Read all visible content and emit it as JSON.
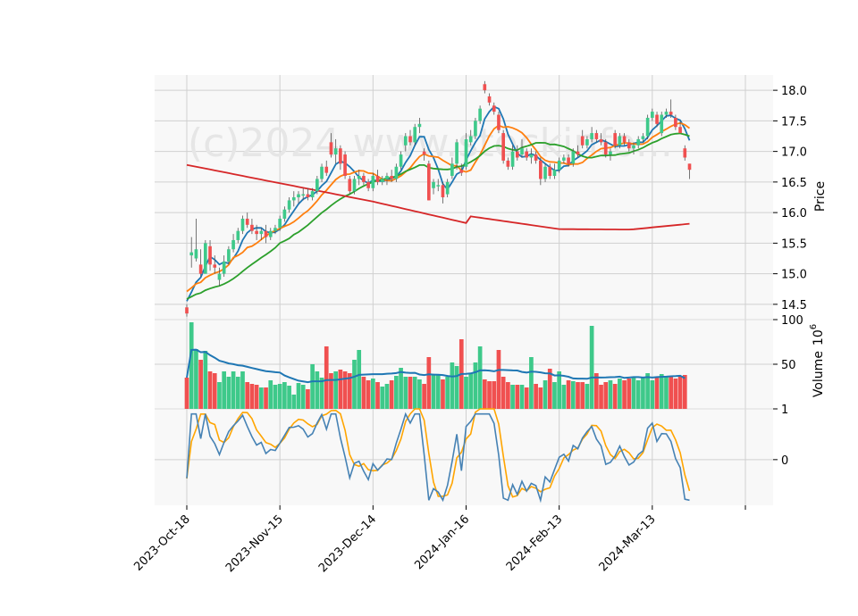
{
  "chart_data": [
    {
      "type": "candlestick",
      "panel": "price",
      "ylabel": "Price",
      "ylim": [
        14.25,
        18.25
      ],
      "yticks": [
        14.5,
        15.0,
        15.5,
        16.0,
        16.5,
        17.0,
        17.5,
        18.0
      ],
      "ytick_labels": [
        "14.5",
        "15.0",
        "15.5",
        "16.0",
        "16.5",
        "17.0",
        "17.5",
        "18.0"
      ],
      "watermark": "(c)2024 www.stockinfo...",
      "grid": true,
      "series": [
        {
          "name": "",
          "style": "candles",
          "values": []
        },
        {
          "name": "",
          "style": "ma",
          "color": "#1f77b4"
        },
        {
          "name": "",
          "style": "ma",
          "color": "#ff7f0e"
        },
        {
          "name": "",
          "style": "ma",
          "color": "#2ca02c"
        },
        {
          "name": "",
          "style": "ma",
          "color": "#d62728"
        }
      ],
      "colors": {
        "up": "#3ec98a",
        "down": "#f05050"
      }
    },
    {
      "type": "bar",
      "panel": "volume",
      "ylabel": "Volume  10^6",
      "ylabel_main": "Volume",
      "ylabel_exp": "6",
      "ylabel_base": "10",
      "ylim": [
        0,
        100
      ],
      "yticks": [
        50,
        100
      ],
      "ytick_labels": [
        "50",
        "100"
      ]
    },
    {
      "type": "line",
      "panel": "oscillator",
      "ylim": [
        -0.9,
        1.0
      ],
      "yticks": [
        0,
        1
      ],
      "ytick_labels": [
        "0",
        "1"
      ],
      "series": [
        {
          "name": "",
          "color": "#4682b4"
        },
        {
          "name": "",
          "color": "#ffa500"
        }
      ]
    }
  ],
  "x_axis": {
    "start_date": "2023-10-18",
    "num_sessions": 120,
    "tick_labels": [
      "2023-Oct-18",
      "2023-Nov-15",
      "2023-Dec-14",
      "2024-Jan-16",
      "2024-Feb-13",
      "2024-Mar-13"
    ],
    "tick_index": [
      0,
      20,
      40,
      60,
      80,
      100,
      120
    ]
  },
  "ohlc": [
    [
      14.45,
      14.5,
      14.3,
      14.35
    ],
    [
      15.3,
      15.6,
      15.1,
      15.35
    ],
    [
      15.25,
      15.9,
      15.2,
      15.4
    ],
    [
      15.15,
      15.4,
      14.95,
      15.0
    ],
    [
      15.0,
      15.55,
      15.0,
      15.5
    ],
    [
      15.45,
      15.55,
      15.05,
      15.15
    ],
    [
      15.15,
      15.3,
      15.0,
      15.1
    ],
    [
      14.9,
      15.1,
      14.8,
      15.0
    ],
    [
      15.0,
      15.3,
      14.95,
      15.2
    ],
    [
      15.2,
      15.45,
      15.15,
      15.4
    ],
    [
      15.4,
      15.65,
      15.35,
      15.55
    ],
    [
      15.55,
      15.75,
      15.5,
      15.7
    ],
    [
      15.7,
      15.95,
      15.65,
      15.9
    ],
    [
      15.9,
      16.0,
      15.75,
      15.8
    ],
    [
      15.8,
      15.9,
      15.65,
      15.7
    ],
    [
      15.7,
      15.8,
      15.55,
      15.65
    ],
    [
      15.65,
      15.75,
      15.55,
      15.7
    ],
    [
      15.7,
      15.8,
      15.5,
      15.6
    ],
    [
      15.6,
      15.75,
      15.55,
      15.7
    ],
    [
      15.7,
      15.8,
      15.65,
      15.75
    ],
    [
      15.75,
      15.95,
      15.7,
      15.9
    ],
    [
      15.9,
      16.1,
      15.85,
      16.05
    ],
    [
      16.05,
      16.25,
      16.0,
      16.2
    ],
    [
      16.2,
      16.35,
      16.1,
      16.25
    ],
    [
      16.25,
      16.35,
      16.15,
      16.3
    ],
    [
      16.3,
      16.4,
      16.2,
      16.3
    ],
    [
      16.3,
      16.4,
      16.2,
      16.25
    ],
    [
      16.25,
      16.4,
      16.2,
      16.35
    ],
    [
      16.35,
      16.6,
      16.3,
      16.55
    ],
    [
      16.55,
      16.8,
      16.5,
      16.75
    ],
    [
      16.75,
      16.85,
      16.6,
      16.65
    ],
    [
      17.15,
      17.3,
      16.9,
      16.95
    ],
    [
      16.95,
      17.2,
      16.8,
      17.05
    ],
    [
      17.05,
      17.1,
      16.7,
      16.8
    ],
    [
      16.95,
      17.0,
      16.55,
      16.6
    ],
    [
      16.55,
      16.6,
      16.3,
      16.35
    ],
    [
      16.35,
      16.6,
      16.3,
      16.55
    ],
    [
      16.55,
      16.7,
      16.45,
      16.6
    ],
    [
      16.6,
      16.65,
      16.45,
      16.5
    ],
    [
      16.5,
      16.55,
      16.35,
      16.4
    ],
    [
      16.4,
      16.65,
      16.35,
      16.6
    ],
    [
      16.6,
      16.7,
      16.45,
      16.5
    ],
    [
      16.5,
      16.6,
      16.45,
      16.55
    ],
    [
      16.55,
      16.65,
      16.45,
      16.6
    ],
    [
      16.6,
      16.7,
      16.5,
      16.55
    ],
    [
      16.55,
      16.8,
      16.5,
      16.75
    ],
    [
      16.75,
      17.0,
      16.7,
      16.95
    ],
    [
      17.1,
      17.3,
      17.0,
      17.25
    ],
    [
      17.25,
      17.35,
      17.1,
      17.15
    ],
    [
      17.15,
      17.45,
      17.1,
      17.4
    ],
    [
      17.4,
      17.55,
      17.3,
      17.45
    ],
    [
      17.0,
      17.05,
      16.85,
      16.95
    ],
    [
      16.8,
      16.85,
      16.2,
      16.2
    ],
    [
      16.4,
      16.55,
      16.3,
      16.5
    ],
    [
      16.45,
      16.55,
      16.35,
      16.45
    ],
    [
      16.45,
      16.5,
      16.15,
      16.25
    ],
    [
      16.3,
      16.55,
      16.25,
      16.5
    ],
    [
      16.6,
      16.9,
      16.55,
      16.8
    ],
    [
      16.8,
      17.2,
      16.7,
      17.15
    ],
    [
      16.7,
      16.8,
      16.6,
      16.65
    ],
    [
      16.75,
      17.3,
      16.7,
      17.2
    ],
    [
      17.15,
      17.35,
      17.1,
      17.25
    ],
    [
      17.25,
      17.55,
      17.2,
      17.5
    ],
    [
      17.5,
      17.75,
      17.45,
      17.7
    ],
    [
      18.1,
      18.15,
      17.95,
      18.0
    ],
    [
      17.9,
      17.95,
      17.75,
      17.8
    ],
    [
      17.75,
      17.8,
      17.6,
      17.65
    ],
    [
      17.6,
      17.65,
      17.3,
      17.35
    ],
    [
      17.3,
      17.35,
      16.8,
      16.85
    ],
    [
      16.85,
      16.9,
      16.7,
      16.75
    ],
    [
      16.75,
      17.1,
      16.7,
      17.0
    ],
    [
      17.0,
      17.1,
      16.85,
      16.9
    ],
    [
      16.95,
      17.2,
      16.9,
      17.05
    ],
    [
      17.0,
      17.05,
      16.85,
      16.9
    ],
    [
      16.9,
      17.05,
      16.8,
      16.95
    ],
    [
      16.95,
      17.0,
      16.8,
      16.85
    ],
    [
      16.85,
      16.9,
      16.45,
      16.55
    ],
    [
      16.55,
      16.8,
      16.5,
      16.75
    ],
    [
      16.75,
      16.8,
      16.55,
      16.6
    ],
    [
      16.6,
      16.8,
      16.55,
      16.7
    ],
    [
      16.7,
      16.9,
      16.65,
      16.85
    ],
    [
      16.85,
      16.95,
      16.8,
      16.9
    ],
    [
      16.9,
      16.95,
      16.75,
      16.8
    ],
    [
      16.8,
      17.05,
      16.75,
      17.0
    ],
    [
      17.0,
      17.1,
      16.9,
      16.95
    ],
    [
      17.25,
      17.35,
      17.05,
      17.1
    ],
    [
      17.1,
      17.25,
      17.05,
      17.2
    ],
    [
      17.2,
      17.4,
      17.15,
      17.3
    ],
    [
      17.3,
      17.35,
      17.15,
      17.2
    ],
    [
      17.2,
      17.3,
      17.1,
      17.15
    ],
    [
      17.15,
      17.2,
      16.9,
      16.95
    ],
    [
      16.95,
      17.05,
      16.85,
      17.0
    ],
    [
      17.3,
      17.35,
      17.05,
      17.1
    ],
    [
      17.1,
      17.3,
      17.05,
      17.25
    ],
    [
      17.25,
      17.3,
      17.1,
      17.15
    ],
    [
      17.15,
      17.2,
      17.0,
      17.05
    ],
    [
      17.05,
      17.15,
      16.95,
      17.1
    ],
    [
      17.1,
      17.25,
      17.05,
      17.2
    ],
    [
      17.2,
      17.3,
      17.15,
      17.25
    ],
    [
      17.25,
      17.6,
      17.2,
      17.55
    ],
    [
      17.55,
      17.7,
      17.5,
      17.65
    ],
    [
      17.6,
      17.65,
      17.4,
      17.45
    ],
    [
      17.3,
      17.65,
      17.25,
      17.6
    ],
    [
      17.6,
      17.7,
      17.55,
      17.65
    ],
    [
      17.65,
      17.85,
      17.55,
      17.6
    ],
    [
      17.55,
      17.6,
      17.35,
      17.4
    ],
    [
      17.4,
      17.5,
      17.3,
      17.3
    ],
    [
      17.05,
      17.1,
      16.85,
      16.9
    ],
    [
      16.8,
      16.8,
      16.55,
      16.7
    ]
  ],
  "volume": [
    35,
    97,
    67,
    55,
    65,
    42,
    40,
    30,
    42,
    36,
    42,
    36,
    42,
    30,
    28,
    27,
    24,
    24,
    32,
    27,
    28,
    30,
    26,
    16,
    29,
    27,
    22,
    50,
    42,
    35,
    70,
    40,
    42,
    44,
    42,
    40,
    55,
    66,
    36,
    32,
    34,
    30,
    25,
    28,
    32,
    37,
    46,
    36,
    36,
    36,
    33,
    28,
    58,
    38,
    38,
    33,
    36,
    52,
    48,
    78,
    36,
    40,
    52,
    70,
    33,
    31,
    31,
    66,
    36,
    30,
    27,
    27,
    27,
    24,
    58,
    28,
    24,
    32,
    45,
    30,
    42,
    27,
    32,
    31,
    30,
    30,
    28,
    93,
    40,
    27,
    30,
    32,
    28,
    34,
    32,
    34,
    35,
    32,
    35,
    40,
    32,
    36,
    39,
    36,
    37,
    34,
    37,
    38
  ]
}
